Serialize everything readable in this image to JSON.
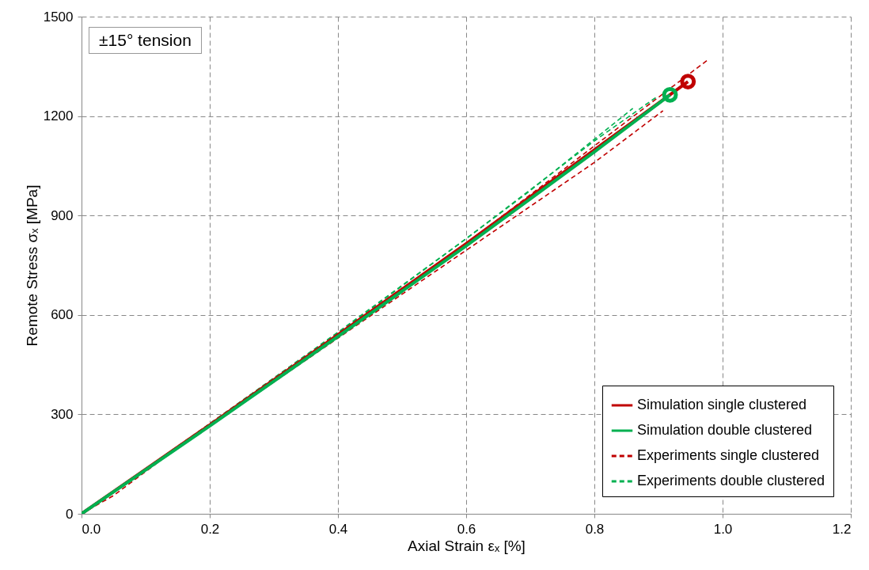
{
  "chart_data": {
    "type": "line",
    "xlabel": "Axial Strain εₓ [%]",
    "ylabel": "Remote Stress σₓ [MPa]",
    "annotations": [
      "±15° tension"
    ],
    "xlim": [
      0,
      1.2
    ],
    "xticks": [
      {
        "value": 0,
        "label": "0.0"
      },
      0.2,
      0.4,
      0.6,
      0.8,
      {
        "value": 1,
        "label": "1.0"
      },
      1.2
    ],
    "ylim": [
      0,
      1500
    ],
    "yticks": [
      0,
      300,
      600,
      900,
      1200,
      1500
    ],
    "grid": true,
    "legend": "bottom right",
    "series": [
      {
        "name": "Experiments single clustered",
        "color": "#c00000",
        "line_style": "dashed",
        "x": [
          0,
          0.05,
          0.2,
          0.4,
          0.6,
          0.8,
          0.978
        ],
        "values": [
          0,
          55,
          272,
          545,
          815,
          1110,
          1371
        ]
      },
      {
        "color": "#c00000",
        "line_style": "dashed",
        "x": [
          0,
          0.2,
          0.4,
          0.6,
          0.8,
          0.907
        ],
        "values": [
          0,
          265,
          530,
          795,
          1060,
          1216
        ]
      },
      {
        "name": "Experiments double clustered",
        "color": "#00b050",
        "line_style": "dashed",
        "x": [
          0,
          0.2,
          0.4,
          0.6,
          0.8,
          0.898
        ],
        "values": [
          0,
          270,
          545,
          830,
          1125,
          1259
        ]
      },
      {
        "color": "#00b050",
        "line_style": "dashed",
        "x": [
          0,
          0.2,
          0.4,
          0.6,
          0.7,
          0.86
        ],
        "values": [
          0,
          272,
          548,
          830,
          975,
          1223
        ]
      },
      {
        "name": "Simulation single clustered",
        "color": "#c00000",
        "line_style": "solid",
        "x": [
          0,
          0.2,
          0.4,
          0.6,
          0.8,
          0.946
        ],
        "values": [
          0,
          268,
          540,
          815,
          1098,
          1304
        ]
      },
      {
        "name": "Simulation double clustered",
        "color": "#00b050",
        "line_style": "solid",
        "x": [
          0,
          0.2,
          0.4,
          0.6,
          0.8,
          0.918
        ],
        "values": [
          0,
          265,
          535,
          808,
          1092,
          1264
        ]
      },
      {
        "type": "scatter",
        "marker": "circle",
        "color": "#c00000",
        "x": [
          0.946
        ],
        "values": [
          1304
        ]
      },
      {
        "type": "scatter",
        "marker": "circle",
        "color": "#00b050",
        "x": [
          0.918
        ],
        "values": [
          1264
        ]
      }
    ]
  }
}
